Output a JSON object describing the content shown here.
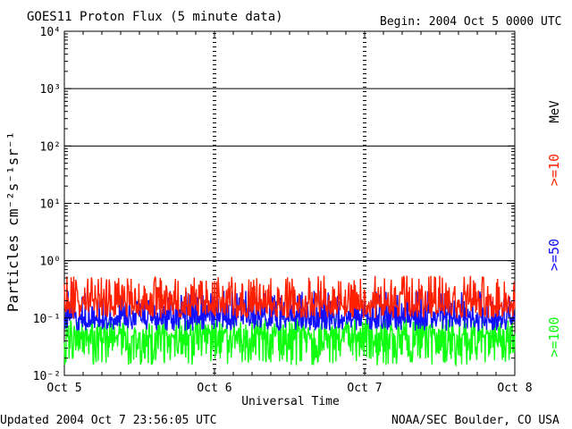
{
  "header": {
    "title": "GOES11 Proton Flux (5 minute data)",
    "begin": "Begin: 2004 Oct 5 0000 UTC"
  },
  "footer": {
    "updated": "Updated 2004 Oct  7 23:56:05 UTC",
    "credit": "NOAA/SEC Boulder, CO USA"
  },
  "labels": {
    "mev": "MeV"
  },
  "chart_data": {
    "type": "line",
    "title": "GOES11 Proton Flux (5 minute data)",
    "xlabel": "Universal Time",
    "ylabel": "Particles cm⁻²s⁻¹sr⁻¹",
    "yscale": "log",
    "ylim": [
      0.01,
      10000
    ],
    "y_ticks": [
      {
        "value": 0.01,
        "label": "10⁻²"
      },
      {
        "value": 0.1,
        "label": "10⁻¹"
      },
      {
        "value": 1,
        "label": "10⁰"
      },
      {
        "value": 10,
        "label": "10¹"
      },
      {
        "value": 100,
        "label": "10²"
      },
      {
        "value": 1000,
        "label": "10³"
      },
      {
        "value": 10000,
        "label": "10⁴"
      }
    ],
    "x_ticks": [
      "Oct 5",
      "Oct 6",
      "Oct 7",
      "Oct 8"
    ],
    "xlim": [
      "2004-10-05",
      "2004-10-08"
    ],
    "threshold_lines": [
      {
        "value": 10,
        "style": "dashed"
      },
      {
        "value": 1,
        "style": "solid"
      },
      {
        "value": 100,
        "style": "solid"
      },
      {
        "value": 1000,
        "style": "solid"
      }
    ],
    "series": [
      {
        "name": ">=10",
        "color": "#ff2000",
        "baseline": 0.17,
        "peak": 0.55,
        "floor": 0.1
      },
      {
        "name": ">=50",
        "color": "#1010ff",
        "baseline": 0.1,
        "peak": 0.3,
        "floor": 0.06
      },
      {
        "name": ">=100",
        "color": "#10ff10",
        "baseline": 0.05,
        "peak": 0.1,
        "floor": 0.015
      }
    ]
  }
}
